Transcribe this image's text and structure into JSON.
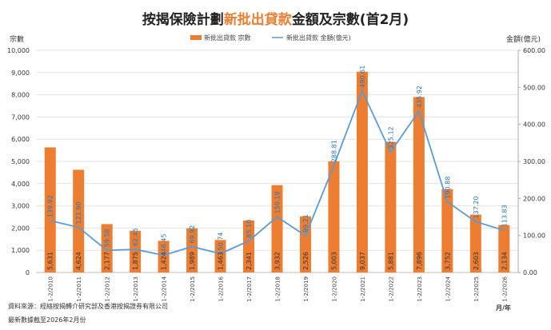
{
  "title": {
    "pre": "按揭保險計劃",
    "highlight": "新批出貸款",
    "post": "金額及宗數(首2月)"
  },
  "footer": {
    "source": "資料來源：經絡按揭轉介研究部及香港按揭證券有限公司",
    "note": "最新數據截至2026年2月份"
  },
  "colors": {
    "bar": "#ed7d31",
    "line": "#5b9bd5",
    "highlight": "#ed7d31"
  },
  "chart_data": {
    "type": "bar+line",
    "categories": [
      "1-2/2010",
      "1-2/2011",
      "1-2/2012",
      "1-2/2013",
      "1-2/2014",
      "1-2/2015",
      "1-2/2016",
      "1-2/2017",
      "1-2/2018",
      "1-2/2019",
      "1-2/2020",
      "1-2/2021",
      "1-2/2022",
      "1-2/2023",
      "1-2/2024",
      "1-2/2025",
      "1-2/2026"
    ],
    "series": [
      {
        "name": "新批出貸款 宗數",
        "type": "bar",
        "axis": "left",
        "values": [
          5631,
          4624,
          2177,
          1875,
          1424,
          1989,
          1463,
          2341,
          3932,
          2526,
          5003,
          9037,
          5881,
          7896,
          3752,
          2603,
          2134
        ],
        "labels": [
          "5,631",
          "4,624",
          "2,177",
          "1,875",
          "1,424",
          "1,989",
          "1,463",
          "2,341",
          "3,932",
          "2,526",
          "5,003",
          "9,037",
          "5,881",
          "7,896",
          "3,752",
          "2,603",
          "2,134"
        ]
      },
      {
        "name": "新批出貸款 金額(億元)",
        "type": "line",
        "axis": "right",
        "values": [
          139.92,
          121.9,
          59.58,
          62.45,
          46.45,
          69.92,
          50.74,
          85.1,
          150.19,
          99.21,
          288.81,
          490.61,
          325.12,
          435.92,
          190.88,
          137.2,
          113.83
        ],
        "labels": [
          "139.92",
          "121.90",
          "59.58",
          "62.45",
          "46.45",
          "69.92",
          "50.74",
          "85.10",
          "150.19",
          "99.21",
          "288.81",
          "490.61",
          "325.12",
          "435.92",
          "190.88",
          "137.20",
          "113.83"
        ]
      }
    ],
    "ylabel_left": "宗數",
    "ylabel_right": "金額(億元)",
    "xlabel": "月/年",
    "ylim_left": [
      0,
      10000
    ],
    "ylim_right": [
      0,
      600
    ],
    "yticks_left": [
      "0",
      "1,000",
      "2,000",
      "3,000",
      "4,000",
      "5,000",
      "6,000",
      "7,000",
      "8,000",
      "9,000",
      "10,000"
    ],
    "yticks_right": [
      "0.00",
      "100.00",
      "200.00",
      "300.00",
      "400.00",
      "500.00",
      "600.00"
    ],
    "grid": true,
    "legend": "top-center"
  }
}
